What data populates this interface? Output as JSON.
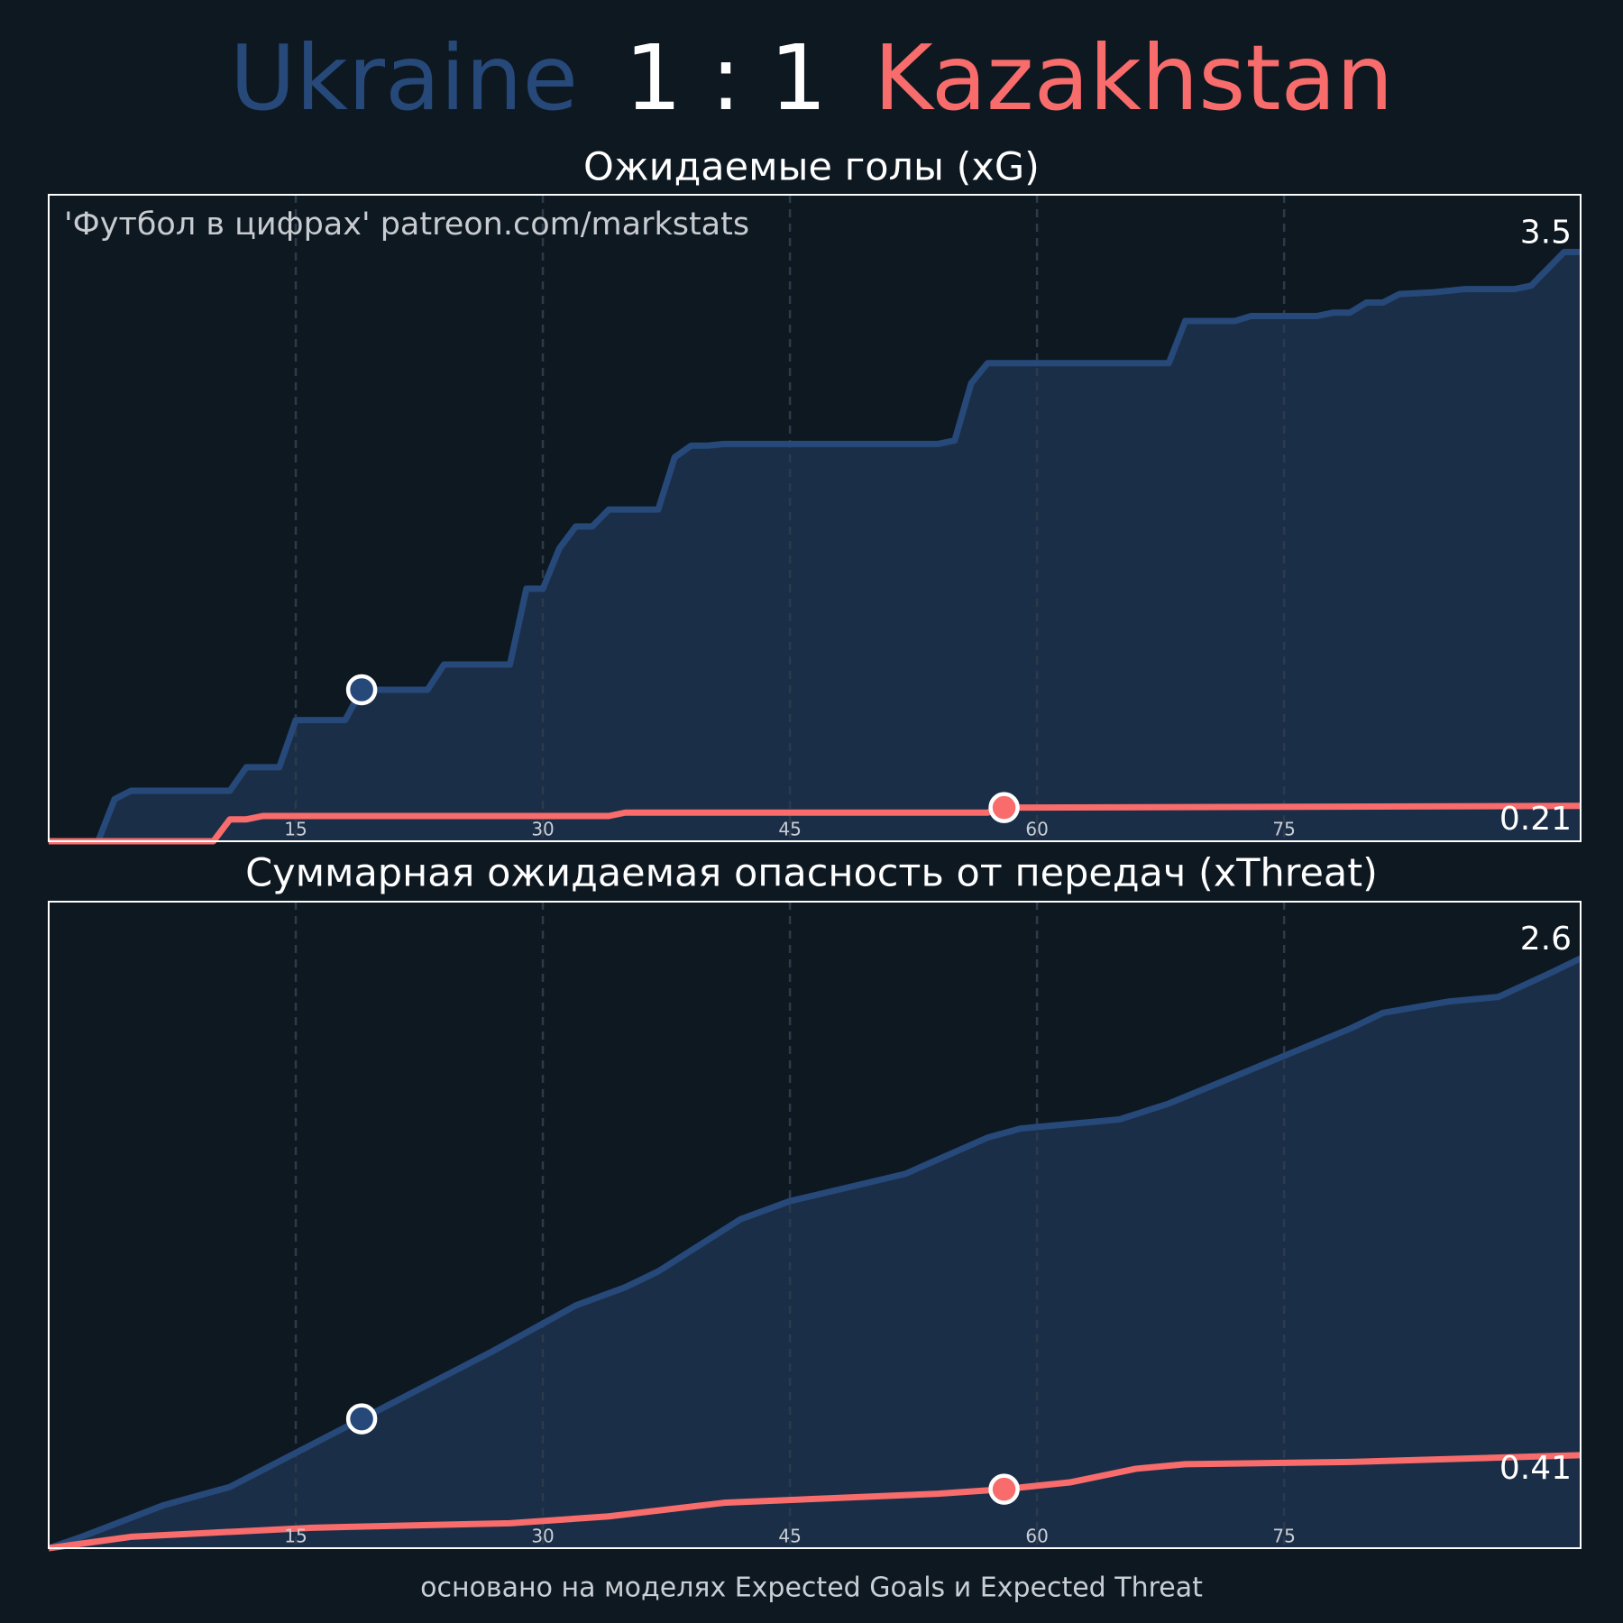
{
  "header": {
    "home": "Ukraine",
    "score": "1 : 1",
    "away": "Kazakhstan"
  },
  "watermark": "'Футбол в цифрах' patreon.com/markstats",
  "footer": "основано на моделях Expected Goals и Expected Threat",
  "chart_data": [
    {
      "type": "line",
      "title": "Ожидаемые голы (xG)",
      "xlim": [
        0,
        93
      ],
      "ylim": [
        0,
        3.84
      ],
      "xticks": [
        15,
        30,
        45,
        60,
        75
      ],
      "grid": true,
      "series": [
        {
          "name": "Ukraine",
          "color": "#26497a",
          "fill": "#1b2e48",
          "goal_minute": 19,
          "end_label": "3.5",
          "x": [
            0,
            3,
            4,
            5,
            11,
            12,
            14,
            15,
            18,
            19,
            23,
            24,
            28,
            29,
            30,
            31,
            32,
            33,
            34,
            37,
            38,
            39,
            40,
            41,
            54,
            55,
            56,
            57,
            68,
            69,
            72,
            73,
            77,
            78,
            79,
            80,
            81,
            82,
            84,
            86,
            89,
            90,
            92,
            93
          ],
          "values": [
            0,
            0,
            0.25,
            0.3,
            0.3,
            0.44,
            0.44,
            0.72,
            0.72,
            0.9,
            0.9,
            1.05,
            1.05,
            1.5,
            1.5,
            1.74,
            1.87,
            1.87,
            1.97,
            1.97,
            2.28,
            2.35,
            2.35,
            2.36,
            2.36,
            2.38,
            2.72,
            2.84,
            2.84,
            3.09,
            3.09,
            3.12,
            3.12,
            3.14,
            3.14,
            3.2,
            3.2,
            3.25,
            3.26,
            3.28,
            3.28,
            3.3,
            3.5,
            3.5
          ]
        },
        {
          "name": "Kazakhstan",
          "color": "#f96c6c",
          "goal_minute": 58,
          "end_label": "0.21",
          "x": [
            0,
            10,
            11,
            12,
            13,
            34,
            35,
            57,
            58,
            93
          ],
          "values": [
            0,
            0,
            0.13,
            0.13,
            0.15,
            0.15,
            0.17,
            0.17,
            0.2,
            0.21
          ]
        }
      ]
    },
    {
      "type": "line",
      "title": "Суммарная ожидаемая опасность от передач (xThreat)",
      "xlim": [
        0,
        93
      ],
      "ylim": [
        0,
        2.85
      ],
      "xticks": [
        15,
        30,
        45,
        60,
        75
      ],
      "grid": true,
      "series": [
        {
          "name": "Ukraine",
          "color": "#26497a",
          "fill": "#1b2e48",
          "goal_minute": 19,
          "end_label": "2.6",
          "x": [
            0,
            2,
            7,
            11,
            19,
            27,
            32,
            35,
            37,
            42,
            45,
            52,
            57,
            59,
            65,
            68,
            72,
            75,
            79,
            81,
            85,
            88,
            91,
            93
          ],
          "values": [
            0,
            0.05,
            0.19,
            0.27,
            0.57,
            0.87,
            1.07,
            1.15,
            1.22,
            1.45,
            1.53,
            1.65,
            1.81,
            1.85,
            1.89,
            1.96,
            2.08,
            2.17,
            2.29,
            2.36,
            2.41,
            2.43,
            2.53,
            2.6
          ]
        },
        {
          "name": "Kazakhstan",
          "color": "#f96c6c",
          "goal_minute": 58,
          "end_label": "0.41",
          "x": [
            0,
            5,
            16,
            28,
            34,
            41,
            54,
            58,
            62,
            66,
            69,
            79,
            93
          ],
          "values": [
            0,
            0.05,
            0.09,
            0.11,
            0.14,
            0.2,
            0.24,
            0.26,
            0.29,
            0.35,
            0.37,
            0.38,
            0.41
          ]
        }
      ]
    }
  ]
}
